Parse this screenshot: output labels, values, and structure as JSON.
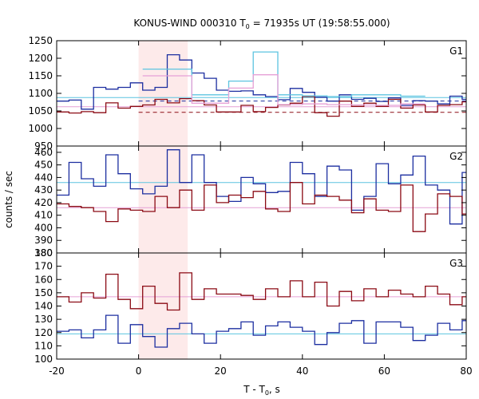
{
  "chart_data": {
    "type": "line",
    "title": "KONUS-WIND 000310 T",
    "title_sub": "0",
    "title_rest": " = 71935s UT (19:58:55.000)",
    "xlabel": "T - T",
    "xlabel_sub": "0",
    "xlabel_rest": ", s",
    "ylabel": "counts / sec",
    "xlim": [
      -20,
      80
    ],
    "xticks": [
      -20,
      0,
      20,
      40,
      60,
      80
    ],
    "shaded_interval": [
      0,
      12
    ],
    "colors": {
      "blue": "#1c2ea0",
      "red": "#8b0a14",
      "cyan": "#5cc4e0",
      "pink": "#e6a0d6",
      "shade": "#fdeaea"
    },
    "panels": [
      {
        "name": "G1",
        "ylim": [
          950,
          1250
        ],
        "yticks": [
          950,
          1000,
          1050,
          1100,
          1150,
          1200,
          1250
        ],
        "bin_width": 3,
        "x_start": -20,
        "background": [
          {
            "color": "blue",
            "level": 1078
          },
          {
            "color": "red",
            "level": 1046
          }
        ],
        "fit_lines": [
          {
            "color": "cyan",
            "level": 1088
          },
          {
            "color": "pink",
            "level": 1062
          }
        ],
        "series": [
          {
            "color": "blue",
            "values": [
              1078,
              1081,
              1055,
              1117,
              1112,
              1117,
              1130,
              1109,
              1117,
              1210,
              1195,
              1158,
              1143,
              1109,
              1106,
              1107,
              1096,
              1091,
              1082,
              1114,
              1103,
              1089,
              1078,
              1096,
              1083,
              1086,
              1077,
              1087,
              1066,
              1079,
              1078,
              1070,
              1092,
              1083
            ]
          },
          {
            "color": "red",
            "values": [
              1047,
              1044,
              1048,
              1045,
              1073,
              1058,
              1063,
              1067,
              1083,
              1073,
              1085,
              1079,
              1067,
              1047,
              1047,
              1066,
              1048,
              1060,
              1067,
              1072,
              1091,
              1045,
              1035,
              1078,
              1063,
              1072,
              1063,
              1083,
              1058,
              1067,
              1047,
              1066,
              1068,
              1076
            ]
          },
          {
            "color": "cyan",
            "values": [
              1169,
              1169,
              1169,
              1169,
              1096,
              1096,
              1096,
              1135,
              1135,
              1218,
              1218,
              1096,
              1096,
              1093,
              1093,
              1091,
              1091,
              1096,
              1096,
              1096,
              1096,
              1092,
              1092
            ],
            "x_start": 1
          },
          {
            "color": "pink",
            "values": [
              1150,
              1150,
              1150,
              1150,
              1072,
              1072,
              1072,
              1115,
              1115,
              1153,
              1153,
              1068,
              1068,
              1070,
              1070,
              1068,
              1068,
              1067,
              1067,
              1066,
              1066,
              1070,
              1070
            ],
            "x_start": 1
          }
        ]
      },
      {
        "name": "G2",
        "ylim": [
          380,
          465
        ],
        "yticks": [
          380,
          390,
          400,
          410,
          420,
          430,
          440,
          450,
          460
        ],
        "bin_width": 3,
        "x_start": -20,
        "fit_lines": [
          {
            "color": "cyan",
            "level": 436
          },
          {
            "color": "pink",
            "level": 416
          }
        ],
        "series": [
          {
            "color": "blue",
            "values": [
              426,
              452,
              439,
              433,
              458,
              443,
              431,
              427,
              433,
              462,
              436,
              458,
              436,
              425,
              421,
              440,
              435,
              428,
              429,
              452,
              443,
              425,
              449,
              446,
              414,
              425,
              451,
              435,
              442,
              457,
              434,
              430,
              403,
              444
            ]
          },
          {
            "color": "red",
            "values": [
              419,
              417,
              416,
              413,
              405,
              415,
              414,
              413,
              425,
              416,
              430,
              414,
              434,
              420,
              426,
              424,
              429,
              415,
              413,
              436,
              419,
              426,
              425,
              422,
              412,
              423,
              414,
              413,
              434,
              397,
              411,
              427,
              425,
              411
            ]
          }
        ]
      },
      {
        "name": "G3",
        "ylim": [
          100,
          180
        ],
        "yticks": [
          100,
          110,
          120,
          130,
          140,
          150,
          160,
          170,
          180
        ],
        "bin_width": 3,
        "x_start": -20,
        "fit_lines": [
          {
            "color": "cyan",
            "level": 119
          },
          {
            "color": "pink",
            "level": 147
          }
        ],
        "series": [
          {
            "color": "blue",
            "values": [
              121,
              122,
              116,
              122,
              133,
              112,
              126,
              117,
              109,
              123,
              127,
              119,
              112,
              121,
              123,
              128,
              118,
              125,
              128,
              124,
              121,
              111,
              120,
              127,
              129,
              112,
              128,
              128,
              124,
              114,
              118,
              127,
              122,
              129
            ]
          },
          {
            "color": "red",
            "values": [
              147,
              143,
              150,
              146,
              164,
              145,
              138,
              155,
              142,
              137,
              165,
              145,
              153,
              149,
              149,
              148,
              145,
              153,
              147,
              159,
              147,
              158,
              140,
              151,
              144,
              153,
              147,
              152,
              149,
              147,
              155,
              149,
              141,
              147
            ]
          }
        ]
      }
    ]
  }
}
